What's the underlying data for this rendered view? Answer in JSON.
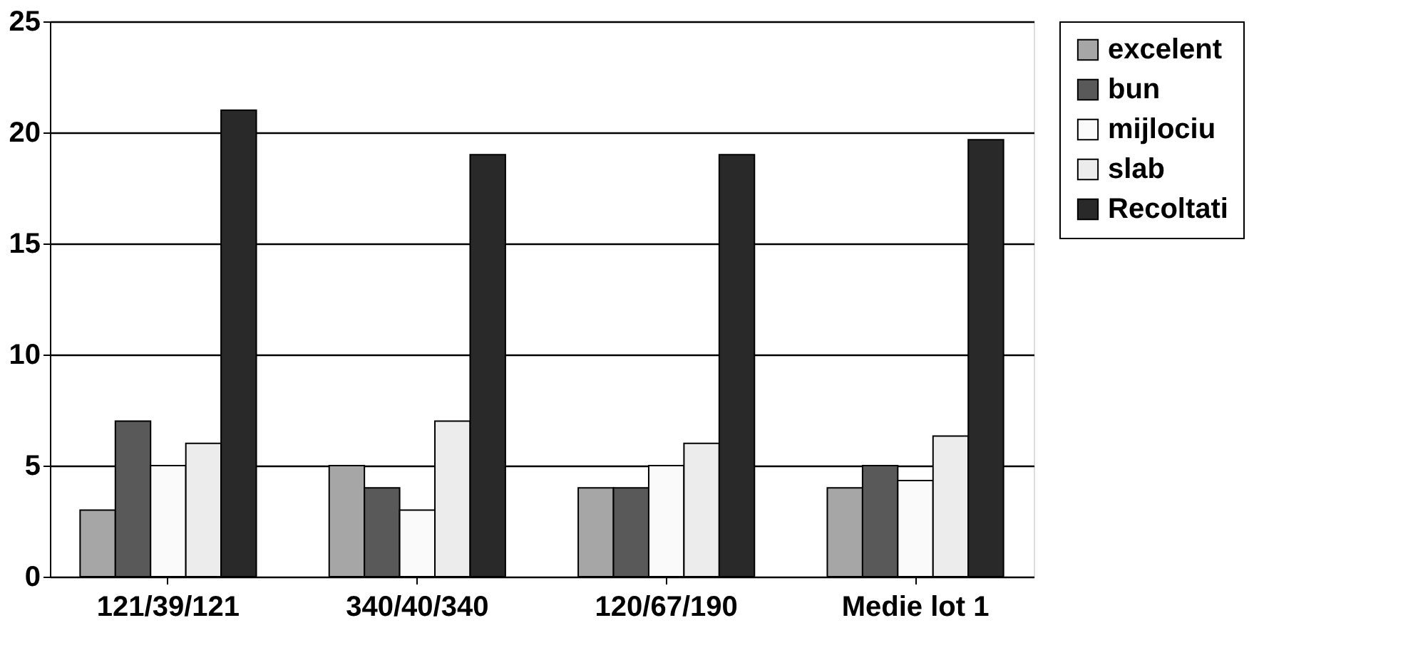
{
  "chart_data": {
    "type": "bar",
    "categories": [
      "121/39/121",
      "340/40/340",
      "120/67/190",
      "Medie lot 1"
    ],
    "series": [
      {
        "name": "excelent",
        "color": "#a6a6a6",
        "values": [
          3,
          5,
          4,
          4
        ]
      },
      {
        "name": "bun",
        "color": "#595959",
        "values": [
          7,
          4,
          4,
          5
        ]
      },
      {
        "name": "mijlociu",
        "color": "#fafafa",
        "values": [
          5,
          3,
          5,
          4.33
        ]
      },
      {
        "name": "slab",
        "color": "#ececec",
        "values": [
          6,
          7,
          6,
          6.33
        ]
      },
      {
        "name": "Recoltati",
        "color": "#292929",
        "values": [
          21,
          19,
          19,
          19.67
        ]
      }
    ],
    "ylim": [
      0,
      25
    ],
    "yticks": [
      0,
      5,
      10,
      15,
      20,
      25
    ],
    "grid": "y",
    "legend": "right"
  }
}
